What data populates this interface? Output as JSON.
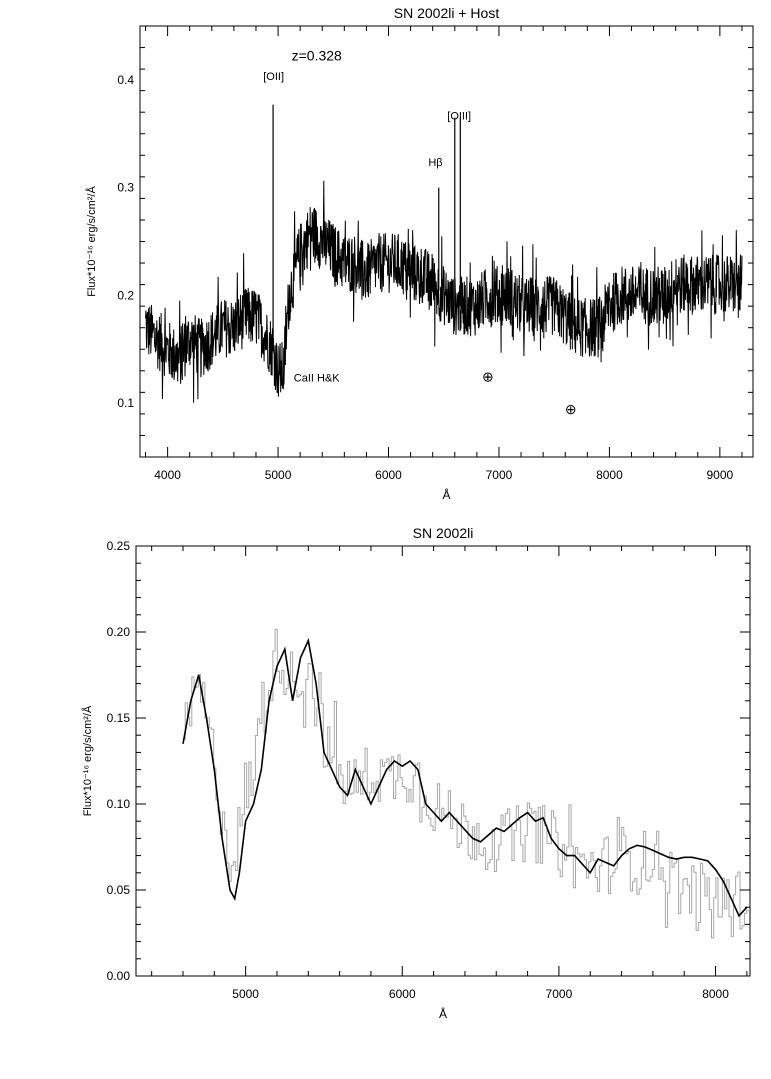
{
  "chart_data": [
    {
      "type": "line",
      "title": "SN 2002li + Host",
      "xlabel": "Å",
      "ylabel": "Flux*10⁻¹⁶ erg/s/cm²/Å",
      "xlim": [
        3750,
        9300
      ],
      "ylim": [
        0.05,
        0.45
      ],
      "xticks": [
        4000,
        5000,
        6000,
        7000,
        8000,
        9000
      ],
      "xtick_labels": [
        "4000",
        "5000",
        "6000",
        "7000",
        "8000",
        "9000"
      ],
      "yticks": [
        0.1,
        0.2,
        0.3,
        0.4
      ],
      "ytick_labels": [
        "0.1",
        "0.2",
        "0.3",
        "0.4"
      ],
      "grid": false,
      "series": [
        {
          "style": "noisy-black",
          "color": "#000000",
          "x": [
            3800,
            3900,
            4000,
            4100,
            4200,
            4300,
            4400,
            4500,
            4600,
            4700,
            4800,
            4900,
            4950,
            5000,
            5050,
            5100,
            5200,
            5300,
            5400,
            5500,
            5600,
            5700,
            5800,
            5900,
            6000,
            6100,
            6200,
            6300,
            6400,
            6500,
            6600,
            6700,
            6800,
            6900,
            7000,
            7100,
            7200,
            7300,
            7400,
            7500,
            7600,
            7700,
            7800,
            7900,
            8000,
            8100,
            8200,
            8300,
            8400,
            8500,
            8600,
            8700,
            8800,
            8900,
            9000,
            9100,
            9200
          ],
          "y": [
            0.17,
            0.16,
            0.15,
            0.14,
            0.16,
            0.15,
            0.16,
            0.17,
            0.17,
            0.18,
            0.18,
            0.16,
            0.15,
            0.13,
            0.13,
            0.2,
            0.24,
            0.26,
            0.25,
            0.24,
            0.23,
            0.23,
            0.22,
            0.23,
            0.23,
            0.23,
            0.22,
            0.22,
            0.21,
            0.2,
            0.19,
            0.19,
            0.19,
            0.2,
            0.2,
            0.2,
            0.19,
            0.19,
            0.19,
            0.19,
            0.18,
            0.17,
            0.17,
            0.17,
            0.19,
            0.2,
            0.2,
            0.2,
            0.2,
            0.2,
            0.21,
            0.21,
            0.21,
            0.21,
            0.21,
            0.21,
            0.21
          ]
        }
      ],
      "lines": [
        {
          "x": 4955,
          "y": 0.377
        },
        {
          "x": 6455,
          "y": 0.3
        },
        {
          "x": 6600,
          "y": 0.365
        },
        {
          "x": 6650,
          "y": 0.365
        }
      ],
      "annotations": [
        {
          "text": "z=0.328",
          "x": 5350,
          "y": 0.418,
          "size": 14
        },
        {
          "text": "[OII]",
          "x": 4960,
          "y": 0.4,
          "size": 11
        },
        {
          "text": "Hβ",
          "x": 6425,
          "y": 0.32,
          "size": 11
        },
        {
          "text": "[OIII]",
          "x": 6640,
          "y": 0.363,
          "size": 11
        },
        {
          "text": "CaII H&K",
          "x": 5350,
          "y": 0.12,
          "size": 11
        },
        {
          "text": "⊕",
          "x": 6900,
          "y": 0.12,
          "size": 14
        },
        {
          "text": "⊕",
          "x": 7650,
          "y": 0.09,
          "size": 14
        }
      ]
    },
    {
      "type": "line",
      "title": "SN 2002li",
      "xlabel": "Å",
      "ylabel": "Flux*10⁻¹⁶ erg/s/cm²/Å",
      "xlim": [
        4300,
        8220
      ],
      "ylim": [
        0.0,
        0.25
      ],
      "xticks": [
        5000,
        6000,
        7000,
        8000
      ],
      "xtick_labels": [
        "5000",
        "6000",
        "7000",
        "8000"
      ],
      "yticks": [
        0.0,
        0.05,
        0.1,
        0.15,
        0.2,
        0.25
      ],
      "ytick_labels": [
        "0.00",
        "0.05",
        "0.10",
        "0.15",
        "0.20",
        "0.25"
      ],
      "grid": false,
      "series": [
        {
          "style": "noisy-gray",
          "color": "#a8a8a8",
          "x": [
            4600,
            4700,
            4800,
            4900,
            5000,
            5100,
            5200,
            5300,
            5400,
            5500,
            5600,
            5700,
            5800,
            5900,
            6000,
            6100,
            6200,
            6300,
            6400,
            6500,
            6600,
            6700,
            6800,
            6900,
            7000,
            7100,
            7200,
            7300,
            7400,
            7500,
            7600,
            7700,
            7800,
            7900,
            8000,
            8100,
            8200
          ],
          "y": [
            0.14,
            0.17,
            0.12,
            0.065,
            0.1,
            0.15,
            0.19,
            0.17,
            0.18,
            0.135,
            0.115,
            0.11,
            0.12,
            0.115,
            0.12,
            0.115,
            0.1,
            0.09,
            0.085,
            0.082,
            0.078,
            0.08,
            0.085,
            0.082,
            0.075,
            0.068,
            0.062,
            0.065,
            0.07,
            0.065,
            0.07,
            0.06,
            0.05,
            0.048,
            0.045,
            0.04,
            0.045
          ]
        },
        {
          "style": "smooth-black",
          "color": "#000000",
          "x": [
            4600,
            4650,
            4700,
            4750,
            4800,
            4850,
            4900,
            4930,
            4960,
            5000,
            5050,
            5100,
            5150,
            5200,
            5250,
            5300,
            5350,
            5400,
            5450,
            5500,
            5550,
            5600,
            5650,
            5700,
            5750,
            5800,
            5850,
            5900,
            5950,
            6000,
            6050,
            6100,
            6150,
            6200,
            6250,
            6300,
            6350,
            6400,
            6450,
            6500,
            6550,
            6600,
            6650,
            6700,
            6750,
            6800,
            6850,
            6900,
            6950,
            7000,
            7050,
            7100,
            7150,
            7200,
            7250,
            7300,
            7350,
            7400,
            7450,
            7500,
            7550,
            7600,
            7650,
            7700,
            7750,
            7800,
            7850,
            7900,
            7950,
            8000,
            8050,
            8100,
            8150,
            8200
          ],
          "y": [
            0.135,
            0.16,
            0.175,
            0.15,
            0.12,
            0.08,
            0.05,
            0.045,
            0.06,
            0.09,
            0.1,
            0.12,
            0.16,
            0.18,
            0.19,
            0.16,
            0.185,
            0.195,
            0.17,
            0.13,
            0.12,
            0.11,
            0.105,
            0.12,
            0.11,
            0.1,
            0.11,
            0.12,
            0.125,
            0.122,
            0.125,
            0.12,
            0.1,
            0.095,
            0.09,
            0.095,
            0.09,
            0.085,
            0.08,
            0.078,
            0.082,
            0.086,
            0.084,
            0.088,
            0.092,
            0.095,
            0.09,
            0.092,
            0.08,
            0.074,
            0.07,
            0.07,
            0.065,
            0.06,
            0.068,
            0.066,
            0.064,
            0.07,
            0.074,
            0.076,
            0.075,
            0.073,
            0.071,
            0.069,
            0.068,
            0.069,
            0.069,
            0.068,
            0.067,
            0.062,
            0.055,
            0.045,
            0.035,
            0.04
          ]
        }
      ],
      "lines": [],
      "annotations": []
    }
  ]
}
